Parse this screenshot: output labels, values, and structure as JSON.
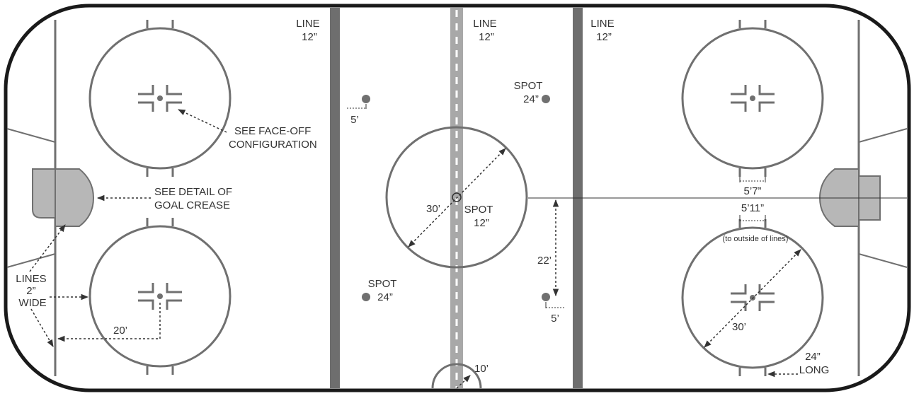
{
  "colors": {
    "rink_line": "#1a1a1a",
    "marking": "#707070",
    "blue_line": "#6e6e6e",
    "red_line": "#a8a8a8",
    "goal_fill": "#b7b7b7",
    "spot": "#707070",
    "text": "#333333"
  },
  "labels": {
    "line_left": [
      "LINE",
      "12”"
    ],
    "line_center": [
      "LINE",
      "12”"
    ],
    "line_right": [
      "LINE",
      "12”"
    ],
    "faceoff_config": [
      "SEE FACE-OFF",
      "CONFIGURATION"
    ],
    "goal_crease": [
      "SEE DETAIL OF",
      "GOAL CREASE"
    ],
    "lines_wide": [
      "LINES",
      "2”",
      "WIDE"
    ],
    "dim_20": "20’",
    "dim_5_top": "5’",
    "spot_top_right": [
      "SPOT",
      "24”"
    ],
    "dim_30_center": "30’",
    "spot_center": [
      "SPOT",
      "12”"
    ],
    "spot_bottom_left": [
      "SPOT",
      "24”"
    ],
    "dim_22": "22’",
    "dim_5_bottom": "5’",
    "dim_10": "10’",
    "dim_5_7": "5’7”",
    "dim_5_11": "5’11”",
    "outside_lines": "(to outside of lines)",
    "dim_30_right": "30’",
    "long_24": [
      "24”",
      "LONG"
    ]
  }
}
